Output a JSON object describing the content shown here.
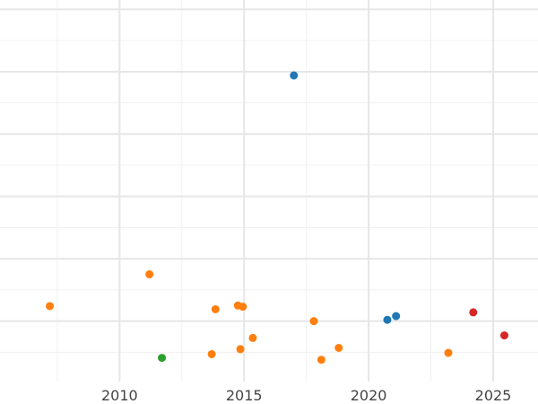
{
  "chart_data": {
    "type": "scatter",
    "title": "",
    "xlabel": "",
    "ylabel": "",
    "xlim": [
      2005.2,
      2026.8
    ],
    "ylim": [
      -0.97,
      5.15
    ],
    "x_ticks": [
      2010,
      2015,
      2020,
      2025
    ],
    "y_ticks": [
      0,
      1,
      2,
      3,
      4,
      5
    ],
    "grid": true,
    "legend": "none",
    "colors": {
      "blue": "#1f77b4",
      "orange": "#ff7f0e",
      "green": "#2ca02c",
      "red": "#d62728"
    },
    "series": [
      {
        "color": "#1f77b4",
        "points": [
          {
            "x": 2017.0,
            "y": 3.94
          },
          {
            "x": 2020.75,
            "y": 0.02
          },
          {
            "x": 2021.1,
            "y": 0.08
          }
        ]
      },
      {
        "color": "#ff7f0e",
        "points": [
          {
            "x": 2007.2,
            "y": 0.24
          },
          {
            "x": 2011.2,
            "y": 0.75
          },
          {
            "x": 2013.7,
            "y": -0.53
          },
          {
            "x": 2013.85,
            "y": 0.19
          },
          {
            "x": 2014.75,
            "y": 0.25
          },
          {
            "x": 2014.85,
            "y": -0.45
          },
          {
            "x": 2014.95,
            "y": 0.23
          },
          {
            "x": 2015.35,
            "y": -0.27
          },
          {
            "x": 2017.8,
            "y": 0.0
          },
          {
            "x": 2018.1,
            "y": -0.62
          },
          {
            "x": 2018.8,
            "y": -0.43
          },
          {
            "x": 2023.2,
            "y": -0.51
          }
        ]
      },
      {
        "color": "#2ca02c",
        "points": [
          {
            "x": 2011.7,
            "y": -0.59
          }
        ]
      },
      {
        "color": "#d62728",
        "points": [
          {
            "x": 2024.2,
            "y": 0.14
          },
          {
            "x": 2025.45,
            "y": -0.23
          }
        ]
      }
    ]
  }
}
